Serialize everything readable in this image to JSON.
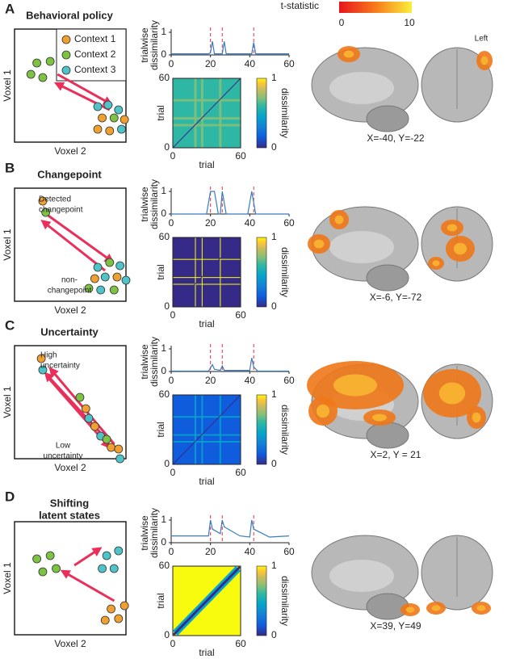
{
  "colorbar": {
    "label": "t-statistic",
    "ticks": [
      0,
      10
    ]
  },
  "side_label": "Left",
  "panels": [
    {
      "letter": "A",
      "title": [
        "Behavioral policy"
      ],
      "schematic": {
        "y_label": "Voxel 1",
        "x_label": "Voxel 2",
        "legend": [
          "Context 1",
          "Context 2",
          "Context 3"
        ],
        "annotations": []
      },
      "trace": {
        "y_label": [
          "trialwise",
          "dissimilarity"
        ],
        "x": [
          0,
          19,
          20,
          21,
          22,
          26,
          27,
          28,
          41,
          42,
          43,
          60
        ],
        "values": [
          0.05,
          0.05,
          0.1,
          0.6,
          0.05,
          0.05,
          0.6,
          0.05,
          0.05,
          0.55,
          0.05,
          0.05
        ],
        "xlim": [
          0,
          60
        ],
        "ylim": [
          0,
          1
        ],
        "xticks": [
          0,
          20,
          40,
          60
        ],
        "yticks": [
          0,
          1
        ],
        "changepoints": [
          20,
          26,
          42
        ]
      },
      "matrix": {
        "x_label": "trial",
        "y_label": "trial",
        "xticks": [
          0,
          60
        ],
        "yticks": [
          0,
          60
        ],
        "colorbar_ticks": [
          0,
          1
        ],
        "colorbar_label": "dissimilarity"
      },
      "brain": {
        "coords": "X=-40, Y=-22"
      }
    },
    {
      "letter": "B",
      "title": [
        "Changepoint"
      ],
      "schematic": {
        "y_label": "Voxel 1",
        "x_label": "Voxel 2",
        "legend": [],
        "annotations": [
          [
            "Detected",
            "changepoint"
          ],
          [
            "non-",
            "changepoint"
          ]
        ]
      },
      "trace": {
        "y_label": [
          "trialwise",
          "dissimilarity"
        ],
        "x": [
          0,
          18,
          20,
          22,
          24,
          25,
          26,
          28,
          39,
          41,
          43,
          60
        ],
        "values": [
          0,
          0,
          1,
          1,
          0,
          0,
          1,
          0,
          0,
          1,
          0,
          0
        ],
        "xlim": [
          0,
          60
        ],
        "ylim": [
          0,
          1
        ],
        "xticks": [
          0,
          20,
          40,
          60
        ],
        "yticks": [
          0,
          1
        ],
        "changepoints": [
          20,
          26,
          42
        ]
      },
      "matrix": {
        "x_label": "trial",
        "y_label": "trial",
        "xticks": [
          0,
          60
        ],
        "yticks": [
          0,
          60
        ],
        "colorbar_ticks": [
          0,
          1
        ],
        "colorbar_label": "dissimilarity"
      },
      "brain": {
        "coords": "X=-6, Y=-72"
      }
    },
    {
      "letter": "C",
      "title": [
        "Uncertainty"
      ],
      "schematic": {
        "y_label": "Voxel 1",
        "x_label": "Voxel 2",
        "legend": [],
        "annotations": [
          [
            "High",
            "uncertainty"
          ],
          [
            "Low",
            "uncertainty"
          ]
        ]
      },
      "trace": {
        "y_label": [
          "trialwise",
          "dissimilarity"
        ],
        "x": [
          0,
          19,
          21,
          22,
          25,
          26,
          27,
          40,
          41,
          42,
          44,
          60
        ],
        "values": [
          0.02,
          0.02,
          0.3,
          0.1,
          0.05,
          0.25,
          0.05,
          0.05,
          0.6,
          0.2,
          0.02,
          0.02
        ],
        "xlim": [
          0,
          60
        ],
        "ylim": [
          0,
          1
        ],
        "xticks": [
          0,
          20,
          40,
          60
        ],
        "yticks": [
          0,
          1
        ],
        "changepoints": [
          20,
          26,
          42
        ]
      },
      "matrix": {
        "x_label": "trial",
        "y_label": "trial",
        "xticks": [
          0,
          60
        ],
        "yticks": [
          0,
          60
        ],
        "colorbar_ticks": [
          0,
          1
        ],
        "colorbar_label": "dissimilarity"
      },
      "brain": {
        "coords": "X=2, Y = 21"
      }
    },
    {
      "letter": "D",
      "title": [
        "Shifting",
        "latent states"
      ],
      "schematic": {
        "y_label": "Voxel 1",
        "x_label": "Voxel 2",
        "legend": [],
        "annotations": []
      },
      "trace": {
        "y_label": [
          "trialwise",
          "dissimilarity"
        ],
        "x": [
          0,
          19,
          20,
          21,
          25,
          26,
          27,
          35,
          40,
          41,
          42,
          50,
          60
        ],
        "values": [
          0.3,
          0.3,
          1,
          0.6,
          0.4,
          1,
          0.7,
          0.3,
          0.25,
          1,
          0.6,
          0.25,
          0.3
        ],
        "xlim": [
          0,
          60
        ],
        "ylim": [
          0,
          1
        ],
        "xticks": [
          0,
          20,
          40,
          60
        ],
        "yticks": [
          0,
          1
        ],
        "changepoints": [
          20,
          26,
          42
        ]
      },
      "matrix": {
        "x_label": "trial",
        "y_label": "trial",
        "xticks": [
          0,
          60
        ],
        "yticks": [
          0,
          60
        ],
        "colorbar_ticks": [
          0,
          1
        ],
        "colorbar_label": "dissimilarity"
      },
      "brain": {
        "coords": "X=39, Y=49"
      }
    }
  ]
}
